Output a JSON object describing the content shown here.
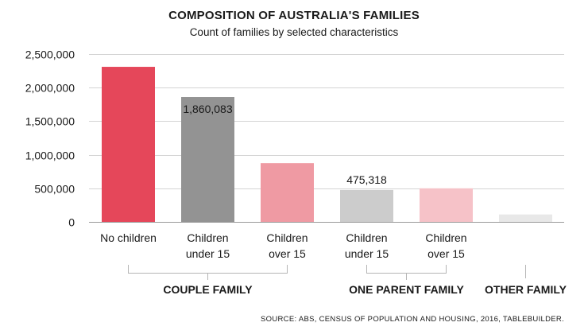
{
  "chart_data": {
    "type": "bar",
    "title": "COMPOSITION OF AUSTRALIA'S FAMILIES",
    "subtitle": "Count of families by selected characteristics",
    "ylim": [
      0,
      2500000
    ],
    "yticks": [
      0,
      500000,
      1000000,
      1500000,
      2000000,
      2500000
    ],
    "ytick_labels": [
      "0",
      "500,000",
      "1,000,000",
      "1,500,000",
      "2,000,000",
      "2,500,000"
    ],
    "grid": true,
    "categories": [
      [
        "No children"
      ],
      [
        "Children",
        "under 15"
      ],
      [
        "Children",
        "over 15"
      ],
      [
        "Children",
        "under 15"
      ],
      [
        "Children",
        "over 15"
      ],
      [
        ""
      ]
    ],
    "values": [
      2310000,
      1860083,
      875000,
      475318,
      500000,
      110000
    ],
    "data_labels": [
      "",
      "1,860,083",
      "",
      "475,318",
      "",
      ""
    ],
    "colors": [
      "#e5475a",
      "#939393",
      "#ef9aa3",
      "#cccccc",
      "#f6c2c8",
      "#e8e8e8"
    ],
    "groups": [
      {
        "label": "COUPLE FAMILY",
        "from": 0,
        "to": 2
      },
      {
        "label": "ONE PARENT FAMILY",
        "from": 3,
        "to": 4
      },
      {
        "label": "OTHER FAMILY",
        "from": 5,
        "to": 5
      }
    ]
  },
  "source": "SOURCE:  ABS, CENSUS OF POPULATION AND HOUSING, 2016, TABLEBUILDER."
}
